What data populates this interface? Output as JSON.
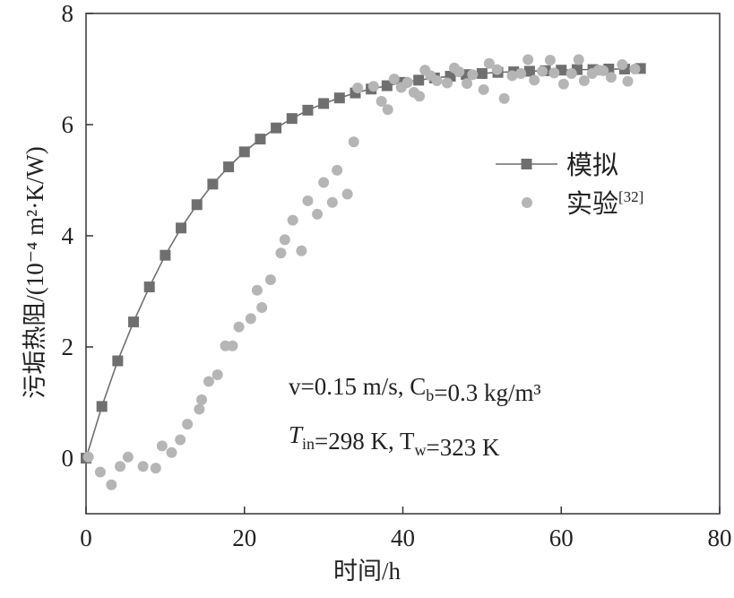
{
  "chart_data": {
    "type": "scatter",
    "xlabel": "时间/h",
    "ylabel": "污垢热阻/(10⁻⁴ m²·K/W)",
    "xlim": [
      0,
      80
    ],
    "ylim": [
      -1,
      8
    ],
    "xticks": [
      0,
      20,
      40,
      60,
      80
    ],
    "yticks": [
      0,
      2,
      4,
      6,
      8
    ],
    "xtick_labels": [
      "0",
      "20",
      "40",
      "60",
      "80"
    ],
    "ytick_labels": [
      "0",
      "2",
      "4",
      "6",
      "8"
    ],
    "grid": false,
    "legend_position": "right",
    "annotations": {
      "line1": "v=0.15 m/s, C_b=0.3 kg/m³",
      "line2": "T_in=298 K, T_w=323 K"
    },
    "series": [
      {
        "name": "模拟",
        "marker": "square",
        "line": true,
        "color": "#6f6f6f",
        "x": [
          0,
          2,
          4,
          6,
          8,
          10,
          12,
          14,
          16,
          18,
          20,
          22,
          24,
          26,
          28,
          30,
          32,
          34,
          36,
          38,
          40,
          42,
          44,
          46,
          48,
          50,
          52,
          54,
          56,
          58,
          60,
          62,
          64,
          66,
          68,
          70
        ],
        "y": [
          0.0,
          0.93,
          1.75,
          2.45,
          3.08,
          3.65,
          4.14,
          4.56,
          4.93,
          5.24,
          5.51,
          5.74,
          5.94,
          6.11,
          6.26,
          6.38,
          6.48,
          6.57,
          6.64,
          6.7,
          6.76,
          6.8,
          6.84,
          6.87,
          6.9,
          6.92,
          6.94,
          6.95,
          6.96,
          6.97,
          6.98,
          6.99,
          6.99,
          7.0,
          7.0,
          7.01
        ]
      },
      {
        "name": "实验[32]",
        "marker": "circle",
        "line": false,
        "color": "#b5b5b5",
        "x": [
          0.3,
          1.8,
          3.2,
          4.3,
          5.3,
          7.2,
          8.8,
          9.6,
          10.8,
          11.9,
          12.8,
          14.3,
          14.6,
          15.5,
          16.6,
          17.6,
          18.5,
          19.3,
          20.8,
          21.6,
          22.2,
          23.3,
          24.6,
          25.1,
          26.1,
          27.2,
          28.0,
          29.2,
          30.0,
          31.1,
          31.7,
          33.0,
          33.8,
          34.3,
          36.3,
          37.3,
          38.1,
          38.9,
          39.8,
          40.6,
          41.4,
          42.1,
          42.8,
          43.5,
          44.3,
          45.6,
          46.5,
          47.1,
          48.1,
          48.8,
          50.2,
          50.9,
          51.9,
          52.8,
          53.8,
          54.9,
          55.8,
          56.6,
          57.6,
          58.6,
          59.1,
          60.3,
          61.3,
          62.2,
          62.9,
          63.9,
          64.7,
          65.3,
          66.3,
          67.7,
          68.4,
          69.3
        ],
        "y": [
          0.02,
          -0.25,
          -0.48,
          -0.15,
          0.02,
          -0.15,
          -0.18,
          0.22,
          0.1,
          0.33,
          0.61,
          0.88,
          1.05,
          1.38,
          1.5,
          2.02,
          2.02,
          2.36,
          2.51,
          3.02,
          2.71,
          3.21,
          3.69,
          3.93,
          4.28,
          3.73,
          4.63,
          4.39,
          4.96,
          4.6,
          5.18,
          4.75,
          5.69,
          6.66,
          6.69,
          6.42,
          6.27,
          6.82,
          6.67,
          6.76,
          6.58,
          6.51,
          6.98,
          6.88,
          6.79,
          6.75,
          7.02,
          6.95,
          6.74,
          6.9,
          6.63,
          7.1,
          6.99,
          6.47,
          6.88,
          6.92,
          7.17,
          6.8,
          6.96,
          7.16,
          6.93,
          6.73,
          6.92,
          7.17,
          6.79,
          6.92,
          6.98,
          6.97,
          6.85,
          7.08,
          6.78,
          7.0
        ]
      }
    ]
  }
}
